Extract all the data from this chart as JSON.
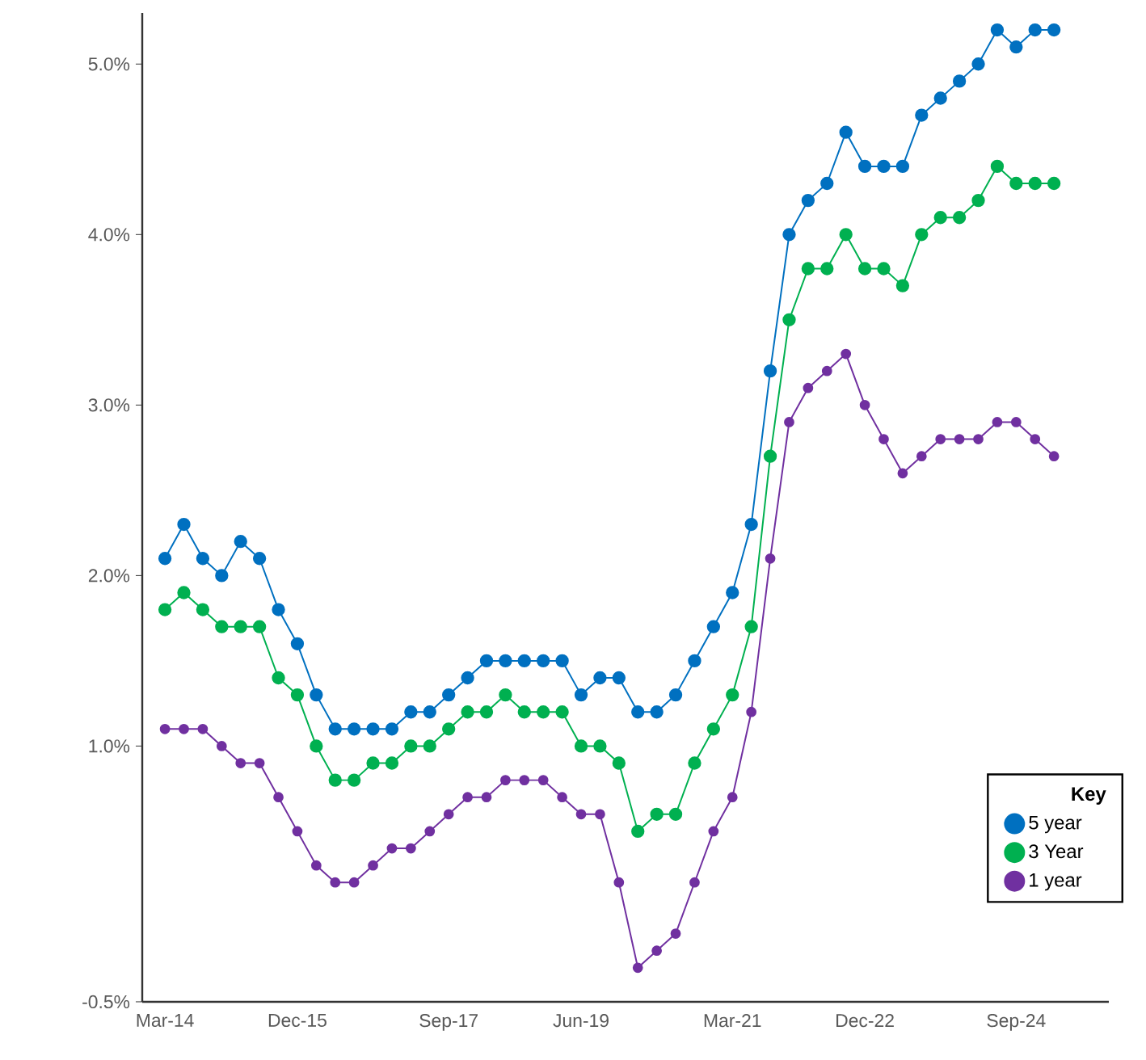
{
  "chart_data": {
    "type": "line",
    "legend_title": "Key",
    "categories": [
      "Mar-14",
      null,
      null,
      null,
      null,
      null,
      null,
      "Dec-15",
      null,
      null,
      null,
      null,
      null,
      null,
      null,
      "Sep-17",
      null,
      null,
      null,
      null,
      null,
      null,
      "Jun-19",
      null,
      null,
      null,
      null,
      null,
      null,
      null,
      "Mar-21",
      null,
      null,
      null,
      null,
      null,
      null,
      "Dec-22",
      null,
      null,
      null,
      null,
      null,
      null,
      null,
      "Sep-24",
      null,
      null
    ],
    "series": [
      {
        "name": "5 year",
        "color": "#0070c0",
        "values": [
          2.1,
          2.3,
          2.1,
          2.0,
          2.2,
          2.1,
          1.8,
          1.6,
          1.3,
          1.1,
          1.1,
          1.1,
          1.1,
          1.2,
          1.2,
          1.3,
          1.4,
          1.5,
          1.5,
          1.5,
          1.5,
          1.5,
          1.3,
          1.4,
          1.4,
          1.2,
          1.2,
          1.3,
          1.5,
          1.7,
          1.9,
          2.3,
          3.2,
          4.0,
          4.2,
          4.3,
          4.6,
          4.4,
          4.4,
          4.4,
          4.7,
          4.8,
          4.9,
          5.0,
          5.2,
          5.1,
          5.2,
          5.2
        ]
      },
      {
        "name": "3 Year",
        "color": "#00b050",
        "values": [
          1.8,
          1.9,
          1.8,
          1.7,
          1.7,
          1.7,
          1.4,
          1.3,
          1.0,
          0.8,
          0.8,
          0.9,
          0.9,
          1.0,
          1.0,
          1.1,
          1.2,
          1.2,
          1.3,
          1.2,
          1.2,
          1.2,
          1.0,
          1.0,
          0.9,
          0.5,
          0.6,
          0.6,
          0.9,
          1.1,
          1.3,
          1.7,
          2.7,
          3.5,
          3.8,
          3.8,
          4.0,
          3.8,
          3.8,
          3.7,
          4.0,
          4.1,
          4.1,
          4.2,
          4.4,
          4.3,
          4.3,
          4.3
        ]
      },
      {
        "name": "1 year",
        "color": "#7030a0",
        "values": [
          1.1,
          1.1,
          1.1,
          1.0,
          0.9,
          0.9,
          0.7,
          0.5,
          0.3,
          0.2,
          0.2,
          0.3,
          0.4,
          0.4,
          0.5,
          0.6,
          0.7,
          0.7,
          0.8,
          0.8,
          0.8,
          0.7,
          0.6,
          0.6,
          0.2,
          -0.3,
          -0.2,
          -0.1,
          0.2,
          0.5,
          0.7,
          1.2,
          2.1,
          2.9,
          3.1,
          3.2,
          3.3,
          3.0,
          2.8,
          2.6,
          2.7,
          2.8,
          2.8,
          2.8,
          2.9,
          2.9,
          2.8,
          2.7
        ]
      }
    ],
    "ylim": [
      -0.5,
      5.3
    ],
    "yticks": [
      {
        "value": -0.5,
        "label": "-0.5%"
      },
      {
        "value": 1,
        "label": "1.0%"
      },
      {
        "value": 2,
        "label": "2.0%"
      },
      {
        "value": 3,
        "label": "3.0%"
      },
      {
        "value": 4,
        "label": "4.0%"
      },
      {
        "value": 5,
        "label": "5.0%"
      }
    ],
    "legend": "bottom right",
    "marker": "circle",
    "line_style": "solid"
  }
}
